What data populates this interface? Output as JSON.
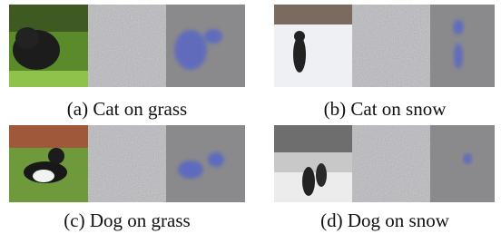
{
  "panels": [
    {
      "caption": "(a) Cat on grass"
    },
    {
      "caption": "(b) Cat on snow"
    },
    {
      "caption": "(c) Dog on grass"
    },
    {
      "caption": "(d) Dog on snow"
    }
  ]
}
